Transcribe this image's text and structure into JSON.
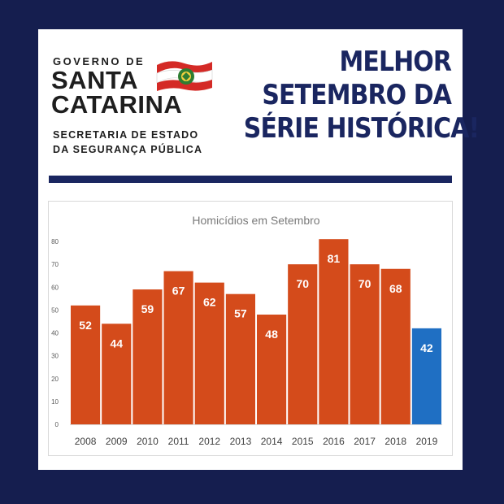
{
  "logo": {
    "line1": "GOVERNO DE",
    "line2": "SANTA",
    "line3": "CATARINA",
    "line4": "SECRETARIA DE ESTADO",
    "line5": "DA SEGURANÇA PÚBLICA"
  },
  "headline": {
    "line1": "MELHOR",
    "line2": "SETEMBRO DA",
    "line3": "SÉRIE HISTÓRICA!"
  },
  "colors": {
    "background": "#151e4f",
    "headline": "#1a2660",
    "bar": "#d44b1b",
    "highlight_bar": "#1f6fc3"
  },
  "chart_data": {
    "type": "bar",
    "title": "Homicídios em Setembro",
    "categories": [
      "2008",
      "2009",
      "2010",
      "2011",
      "2012",
      "2013",
      "2014",
      "2015",
      "2016",
      "2017",
      "2018",
      "2019"
    ],
    "values": [
      52,
      44,
      59,
      67,
      62,
      57,
      48,
      70,
      81,
      70,
      68,
      42
    ],
    "highlight_index": 11,
    "ylim": [
      0,
      80
    ],
    "yticks": [
      0,
      10,
      20,
      30,
      40,
      50,
      60,
      70,
      80
    ],
    "grid": false,
    "data_labels": true
  }
}
